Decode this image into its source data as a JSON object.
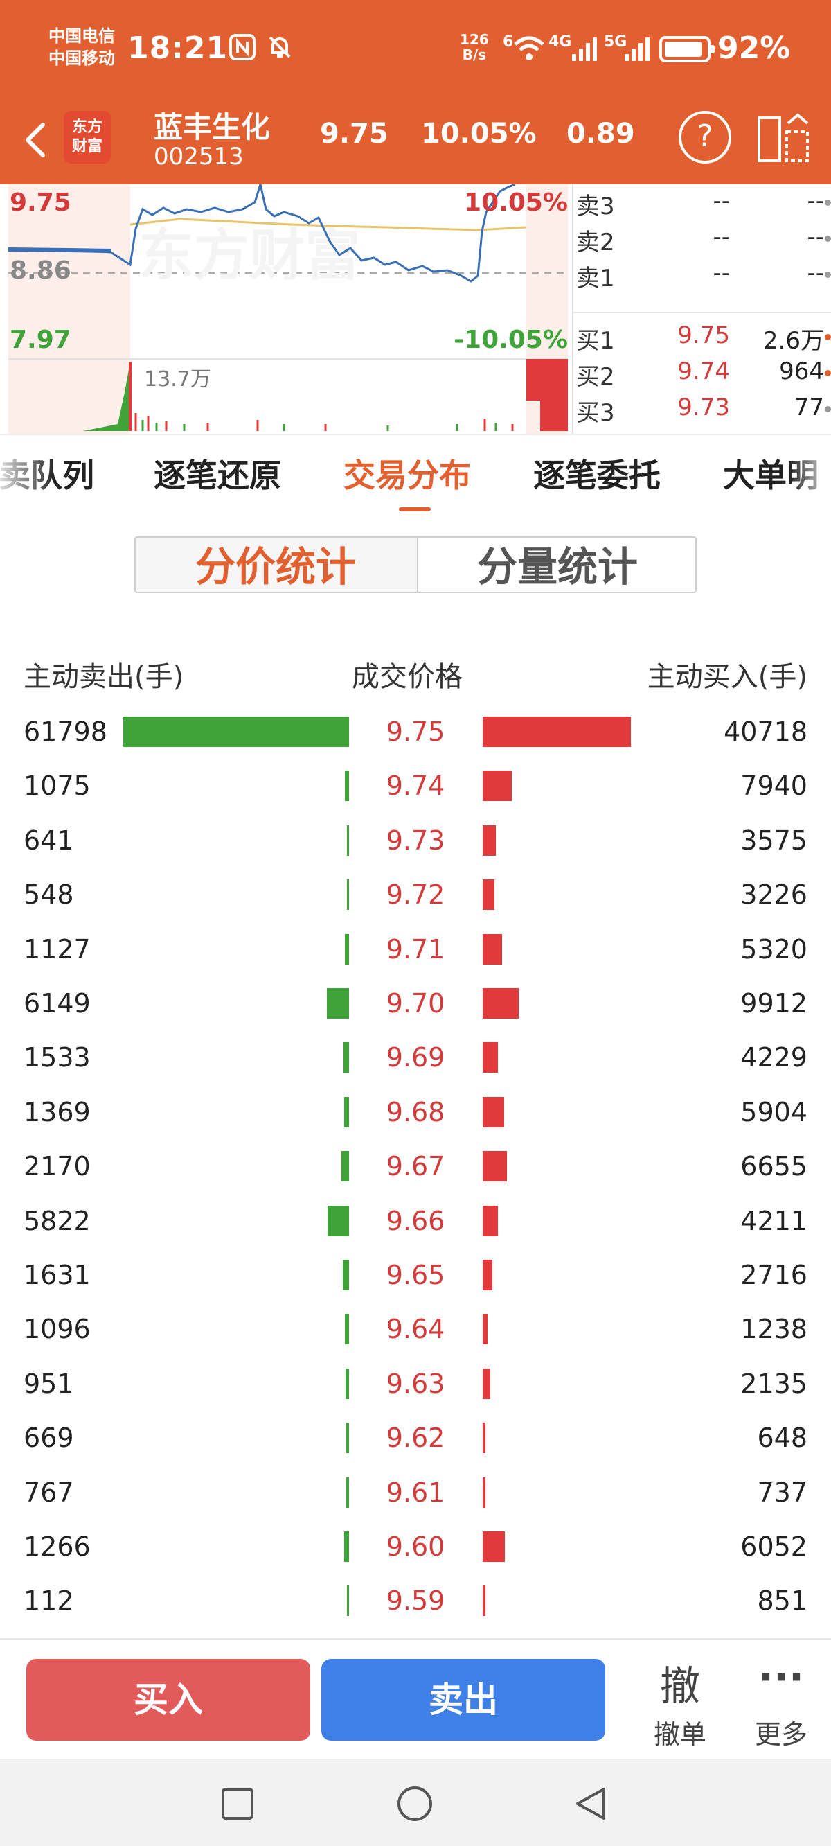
{
  "status_bar": {
    "carrier_1": "中国电信",
    "carrier_2": "中国移动",
    "time": "18:21",
    "net_speed_value": "126",
    "net_speed_unit": "B/s",
    "wifi_tag": "6",
    "signal_1_tag": "4G",
    "signal_2_tag": "5G",
    "battery_pct": "92%",
    "battery_level": 0.92
  },
  "header": {
    "logo_line1": "东方",
    "logo_line2": "财富",
    "stock_name": "蓝丰生化",
    "stock_code": "002513",
    "price": "9.75",
    "change_pct": "10.05%",
    "change_amt": "0.89",
    "help_label": "?"
  },
  "chart": {
    "price_high": "9.75",
    "pct_high": "10.05%",
    "price_mid": "8.86",
    "price_low": "7.97",
    "pct_low": "-10.05%",
    "volume_label": "13.7万",
    "watermark": "东方财富"
  },
  "order_book": {
    "asks": [
      {
        "label": "卖3",
        "price": "--",
        "volume": "--"
      },
      {
        "label": "卖2",
        "price": "--",
        "volume": "--"
      },
      {
        "label": "卖1",
        "price": "--",
        "volume": "--"
      }
    ],
    "bids": [
      {
        "label": "买1",
        "price": "9.75",
        "volume": "2.6万"
      },
      {
        "label": "买2",
        "price": "9.74",
        "volume": "964"
      },
      {
        "label": "买3",
        "price": "9.73",
        "volume": "77"
      }
    ]
  },
  "tabs": [
    {
      "label": "卖队列"
    },
    {
      "label": "逐笔还原"
    },
    {
      "label": "交易分布"
    },
    {
      "label": "逐笔委托"
    },
    {
      "label": "大单明"
    }
  ],
  "segment": {
    "by_price": "分价统计",
    "by_volume": "分量统计"
  },
  "distribution": {
    "col_sell": "主动卖出(手)",
    "col_price": "成交价格",
    "col_buy": "主动买入(手)",
    "rows": [
      {
        "sell": "61798",
        "price": "9.75",
        "buy": "40718"
      },
      {
        "sell": "1075",
        "price": "9.74",
        "buy": "7940"
      },
      {
        "sell": "641",
        "price": "9.73",
        "buy": "3575"
      },
      {
        "sell": "548",
        "price": "9.72",
        "buy": "3226"
      },
      {
        "sell": "1127",
        "price": "9.71",
        "buy": "5320"
      },
      {
        "sell": "6149",
        "price": "9.70",
        "buy": "9912"
      },
      {
        "sell": "1533",
        "price": "9.69",
        "buy": "4229"
      },
      {
        "sell": "1369",
        "price": "9.68",
        "buy": "5904"
      },
      {
        "sell": "2170",
        "price": "9.67",
        "buy": "6655"
      },
      {
        "sell": "5822",
        "price": "9.66",
        "buy": "4211"
      },
      {
        "sell": "1631",
        "price": "9.65",
        "buy": "2716"
      },
      {
        "sell": "1096",
        "price": "9.64",
        "buy": "1238"
      },
      {
        "sell": "951",
        "price": "9.63",
        "buy": "2135"
      },
      {
        "sell": "669",
        "price": "9.62",
        "buy": "648"
      },
      {
        "sell": "767",
        "price": "9.61",
        "buy": "737"
      },
      {
        "sell": "1266",
        "price": "9.60",
        "buy": "6052"
      },
      {
        "sell": "112",
        "price": "9.59",
        "buy": "851"
      }
    ]
  },
  "actions": {
    "buy": "买入",
    "sell": "卖出",
    "cancel_icon": "撤",
    "cancel_label": "撤单",
    "more_icon": "···",
    "more_label": "更多"
  },
  "colors": {
    "brand": "#e2602f",
    "up": "#d43a3a",
    "down": "#3fa33a",
    "buy_button": "#e25a5a",
    "sell_button": "#3f7fe8"
  }
}
